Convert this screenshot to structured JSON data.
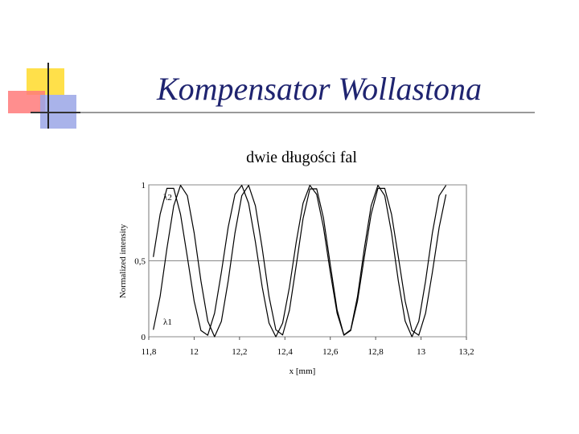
{
  "chart_data": {
    "type": "line",
    "page_title": "Kompensator Wollastona",
    "title": "dwie długości fal",
    "x_label": "x [mm]",
    "y_label": "Normalized intensity",
    "x": [
      11.82,
      11.85,
      11.88,
      11.91,
      11.94,
      11.97,
      12.0,
      12.03,
      12.06,
      12.09,
      12.12,
      12.15,
      12.18,
      12.21,
      12.24,
      12.27,
      12.3,
      12.33,
      12.36,
      12.39,
      12.42,
      12.45,
      12.48,
      12.51,
      12.54,
      12.57,
      12.6,
      12.63,
      12.66,
      12.69,
      12.72,
      12.75,
      12.78,
      12.81,
      12.84,
      12.87,
      12.9,
      12.93,
      12.96,
      12.99,
      13.02,
      13.05,
      13.08,
      13.11
    ],
    "series": [
      {
        "name": "λ1",
        "color": "#000000",
        "values": [
          0.046,
          0.265,
          0.581,
          0.862,
          0.997,
          0.929,
          0.684,
          0.367,
          0.103,
          0,
          0.101,
          0.367,
          0.684,
          0.929,
          0.997,
          0.862,
          0.582,
          0.265,
          0.046,
          0.012,
          0.175,
          0.471,
          0.778,
          0.973,
          0.974,
          0.782,
          0.475,
          0.177,
          0.012,
          0.046,
          0.265,
          0.581,
          0.862,
          0.997,
          0.929,
          0.684,
          0.367,
          0.103,
          0,
          0.101,
          0.367,
          0.684,
          0.929,
          0.997
        ]
      },
      {
        "name": "λ2",
        "color": "#000000",
        "values": [
          0.525,
          0.806,
          0.977,
          0.977,
          0.806,
          0.525,
          0.235,
          0.041,
          0.01,
          0.155,
          0.425,
          0.721,
          0.937,
          0.997,
          0.879,
          0.624,
          0.327,
          0.09,
          0,
          0.09,
          0.327,
          0.624,
          0.879,
          0.997,
          0.937,
          0.721,
          0.425,
          0.155,
          0.01,
          0.041,
          0.235,
          0.525,
          0.806,
          0.977,
          0.977,
          0.806,
          0.525,
          0.235,
          0.041,
          0.01,
          0.155,
          0.425,
          0.721,
          0.937
        ]
      }
    ],
    "xlim": [
      11.8,
      13.2
    ],
    "ylim": [
      0,
      1
    ],
    "xticks": [
      {
        "value": 11.8,
        "label": "11,8"
      },
      12,
      {
        "value": 12.2,
        "label": "12,2"
      },
      {
        "value": 12.4,
        "label": "12,4"
      },
      {
        "value": 12.6,
        "label": "12,6"
      },
      {
        "value": 12.8,
        "label": "12,8"
      },
      13,
      {
        "value": 13.2,
        "label": "13,2"
      }
    ],
    "yticks": [
      0,
      {
        "value": 0.5,
        "label": "0,5"
      },
      1
    ],
    "grid": true
  }
}
